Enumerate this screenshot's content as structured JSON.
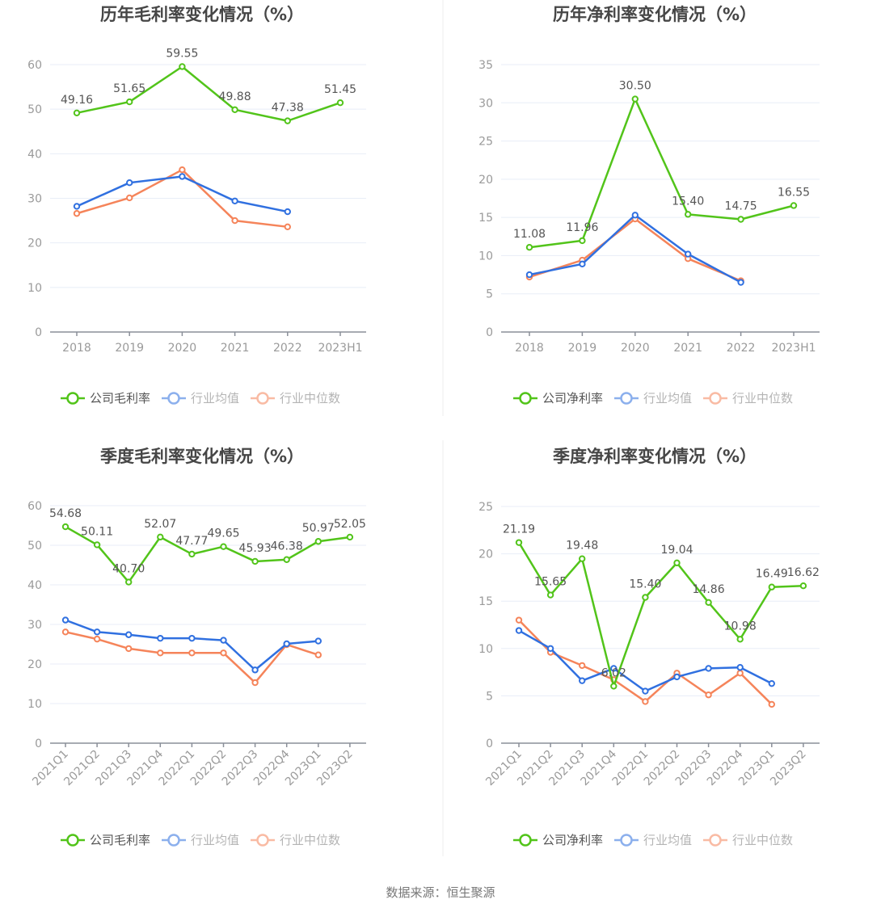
{
  "colors": {
    "company": "#52c41a",
    "industry_avg": "#3070e0",
    "industry_median": "#f5845a",
    "grid": "#e8edf7",
    "axis": "#8a8f99"
  },
  "source_text": "数据来源：恒生聚源",
  "chart_data": [
    {
      "type": "line",
      "title": "历年毛利率变化情况（%）",
      "categories": [
        "2018",
        "2019",
        "2020",
        "2021",
        "2022",
        "2023H1"
      ],
      "ylim": [
        0,
        60
      ],
      "yticks": [
        "0",
        "10",
        "20",
        "30",
        "40",
        "50",
        "60"
      ],
      "legend_position": "bottom",
      "series": [
        {
          "name": "公司毛利率",
          "color_key": "company",
          "values": [
            49.16,
            51.65,
            59.55,
            49.88,
            47.38,
            51.45
          ],
          "labels": [
            "49.16",
            "51.65",
            "59.55",
            "49.88",
            "47.38",
            "51.45"
          ]
        },
        {
          "name": "行业均值",
          "color_key": "industry_avg",
          "values": [
            28.2,
            33.5,
            34.9,
            29.4,
            27.0,
            null
          ]
        },
        {
          "name": "行业中位数",
          "color_key": "industry_median",
          "values": [
            26.6,
            30.1,
            36.4,
            25.0,
            23.6,
            null
          ]
        }
      ]
    },
    {
      "type": "line",
      "title": "历年净利率变化情况（%）",
      "categories": [
        "2018",
        "2019",
        "2020",
        "2021",
        "2022",
        "2023H1"
      ],
      "ylim": [
        0,
        35
      ],
      "yticks": [
        "0",
        "5",
        "10",
        "15",
        "20",
        "25",
        "30",
        "35"
      ],
      "legend_position": "bottom",
      "series": [
        {
          "name": "公司净利率",
          "color_key": "company",
          "values": [
            11.08,
            11.96,
            30.5,
            15.4,
            14.75,
            16.55
          ],
          "labels": [
            "11.08",
            "11.96",
            "30.50",
            "15.40",
            "14.75",
            "16.55"
          ]
        },
        {
          "name": "行业均值",
          "color_key": "industry_avg",
          "values": [
            7.5,
            8.9,
            15.3,
            10.2,
            6.5,
            null
          ]
        },
        {
          "name": "行业中位数",
          "color_key": "industry_median",
          "values": [
            7.2,
            9.4,
            14.8,
            9.6,
            6.7,
            null
          ]
        }
      ]
    },
    {
      "type": "line",
      "title": "季度毛利率变化情况（%）",
      "categories": [
        "2021Q1",
        "2021Q2",
        "2021Q3",
        "2021Q4",
        "2022Q1",
        "2022Q2",
        "2022Q3",
        "2022Q4",
        "2023Q1",
        "2023Q2"
      ],
      "ylim": [
        0,
        60
      ],
      "yticks": [
        "0",
        "10",
        "20",
        "30",
        "40",
        "50",
        "60"
      ],
      "legend_position": "bottom",
      "series": [
        {
          "name": "公司毛利率",
          "color_key": "company",
          "values": [
            54.68,
            50.11,
            40.7,
            52.07,
            47.77,
            49.65,
            45.93,
            46.38,
            50.97,
            52.05
          ],
          "labels": [
            "54.68",
            "50.11",
            "40.70",
            "52.07",
            "47.77",
            "49.65",
            "45.93",
            "46.38",
            "50.97",
            "52.05"
          ]
        },
        {
          "name": "行业均值",
          "color_key": "industry_avg",
          "values": [
            31.1,
            28.1,
            27.4,
            26.5,
            26.5,
            26.0,
            18.5,
            25.1,
            25.8,
            null
          ]
        },
        {
          "name": "行业中位数",
          "color_key": "industry_median",
          "values": [
            28.1,
            26.3,
            23.9,
            22.8,
            22.8,
            22.8,
            15.3,
            24.9,
            22.3,
            null
          ]
        }
      ]
    },
    {
      "type": "line",
      "title": "季度净利率变化情况（%）",
      "categories": [
        "2021Q1",
        "2021Q2",
        "2021Q3",
        "2021Q4",
        "2022Q1",
        "2022Q2",
        "2022Q3",
        "2022Q4",
        "2023Q1",
        "2023Q2"
      ],
      "ylim": [
        0,
        25
      ],
      "yticks": [
        "0",
        "5",
        "10",
        "15",
        "20",
        "25"
      ],
      "legend_position": "bottom",
      "series": [
        {
          "name": "公司净利率",
          "color_key": "company",
          "values": [
            21.19,
            15.65,
            19.48,
            6.02,
            15.4,
            19.04,
            14.86,
            10.98,
            16.49,
            16.62
          ],
          "labels": [
            "21.19",
            "15.65",
            "19.48",
            "6.02",
            "15.40",
            "19.04",
            "14.86",
            "10.98",
            "16.49",
            "16.62"
          ]
        },
        {
          "name": "行业均值",
          "color_key": "industry_avg",
          "values": [
            11.9,
            10.0,
            6.6,
            7.9,
            5.5,
            7.0,
            7.9,
            8.0,
            6.3,
            null
          ]
        },
        {
          "name": "行业中位数",
          "color_key": "industry_median",
          "values": [
            13.0,
            9.6,
            8.2,
            6.7,
            4.4,
            7.4,
            5.1,
            7.4,
            4.1,
            null
          ]
        }
      ]
    }
  ]
}
